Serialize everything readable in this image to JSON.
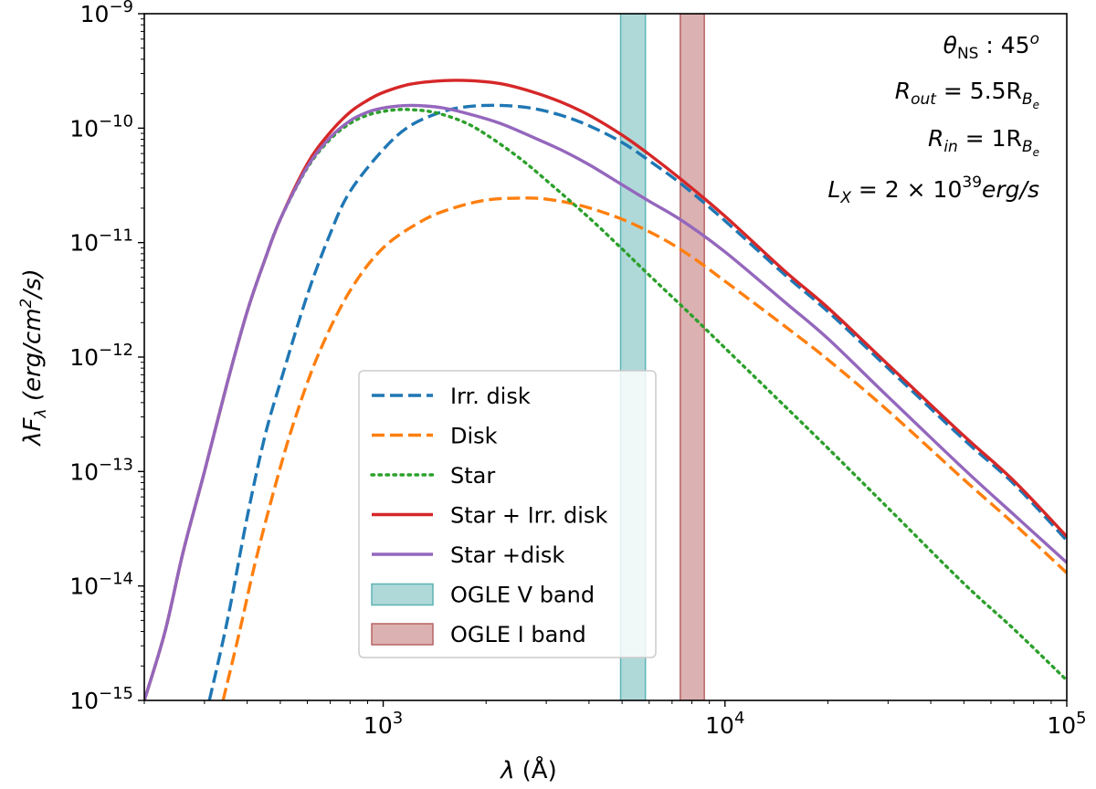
{
  "chart_data": {
    "type": "line",
    "xscale": "log",
    "yscale": "log",
    "xlim": [
      200,
      100000
    ],
    "ylim": [
      1e-15,
      1e-09
    ],
    "xlabel": {
      "main": "λ",
      "unit": "(Å)"
    },
    "ylabel": {
      "main": "λF",
      "sub": "λ",
      "unit_pre": " (erg/cm",
      "unit_sup": "2",
      "unit_post": "/s)"
    },
    "x_ticks": [
      {
        "value": 1000,
        "base": "10",
        "exp": "3"
      },
      {
        "value": 10000,
        "base": "10",
        "exp": "4"
      },
      {
        "value": 100000,
        "base": "10",
        "exp": "5"
      }
    ],
    "y_ticks": [
      {
        "value": 1e-09,
        "base": "10",
        "exp": "−9"
      },
      {
        "value": 1e-10,
        "base": "10",
        "exp": "−10"
      },
      {
        "value": 1e-11,
        "base": "10",
        "exp": "−11"
      },
      {
        "value": 1e-12,
        "base": "10",
        "exp": "−12"
      },
      {
        "value": 1e-13,
        "base": "10",
        "exp": "−13"
      },
      {
        "value": 1e-14,
        "base": "10",
        "exp": "−14"
      },
      {
        "value": 1e-15,
        "base": "10",
        "exp": "−15"
      }
    ],
    "annotations": {
      "theta": {
        "sym": "θ",
        "sub": "NS",
        "rest": " : 45",
        "sup": "o"
      },
      "rout": {
        "main": "R",
        "sub": "out",
        "rest": " = 5.5R",
        "sub2": "B",
        "sub3": "e"
      },
      "rin": {
        "main": "R",
        "sub": "in",
        "rest": " = 1R",
        "sub2": "B",
        "sub3": "e"
      },
      "lx": {
        "main": "L",
        "sub": "X",
        "rest": " = 2 × 10",
        "sup": "39",
        "tail": "erg/s"
      }
    },
    "bands": [
      {
        "name": "OGLE V band",
        "x0": 4950,
        "x1": 5850,
        "color": "#5fb3b3"
      },
      {
        "name": "OGLE I band",
        "x0": 7400,
        "x1": 8700,
        "color": "#b96464"
      }
    ],
    "series": [
      {
        "name": "Irr. disk",
        "color": "#1f77b4",
        "style": "dashed",
        "x": [
          310,
          350,
          400,
          450,
          500,
          600,
          700,
          800,
          1000,
          1200,
          1500,
          1800,
          2200,
          2700,
          3300,
          4000,
          5000,
          6000,
          7500,
          10000,
          15000,
          20000,
          30000,
          50000,
          70000,
          100000
        ],
        "y": [
          1e-15,
          5e-15,
          4e-14,
          2e-13,
          6e-13,
          3.5e-12,
          1.2e-11,
          2.8e-11,
          6.5e-11,
          1.05e-10,
          1.4e-10,
          1.55e-10,
          1.58e-10,
          1.5e-10,
          1.3e-10,
          1.05e-10,
          7.5e-11,
          5.2e-11,
          3.2e-11,
          1.55e-11,
          5.2e-12,
          2.5e-12,
          8e-13,
          1.9e-13,
          7.8e-14,
          2.5e-14
        ]
      },
      {
        "name": "Disk",
        "color": "#ff7f0e",
        "style": "dashed",
        "x": [
          340,
          380,
          420,
          480,
          550,
          650,
          800,
          1000,
          1300,
          1600,
          2000,
          2500,
          3000,
          3800,
          5000,
          6500,
          8000,
          10000,
          15000,
          20000,
          30000,
          50000,
          70000,
          100000
        ],
        "y": [
          1e-15,
          4e-15,
          1.5e-14,
          7e-14,
          2.8e-13,
          1.1e-12,
          3.8e-12,
          9e-12,
          1.55e-11,
          2e-11,
          2.35e-11,
          2.45e-11,
          2.4e-11,
          2.1e-11,
          1.6e-11,
          1.1e-11,
          7.5e-12,
          4.6e-12,
          1.85e-12,
          9.5e-13,
          3.4e-13,
          8.5e-14,
          3.5e-14,
          1.3e-14
        ]
      },
      {
        "name": "Star",
        "color": "#2ca02c",
        "style": "dotted",
        "x": [
          200,
          230,
          260,
          300,
          350,
          400,
          450,
          500,
          600,
          700,
          800,
          900,
          1000,
          1100,
          1200,
          1400,
          1700,
          2000,
          2500,
          3000,
          4000,
          5000,
          6000,
          8000,
          10000,
          15000,
          20000,
          30000,
          50000,
          70000,
          100000
        ],
        "y": [
          1e-15,
          4e-15,
          2e-14,
          1e-13,
          6e-13,
          2.5e-12,
          7e-12,
          1.6e-11,
          4.5e-11,
          8e-11,
          1.1e-10,
          1.3e-10,
          1.4e-10,
          1.45e-10,
          1.45e-10,
          1.38e-10,
          1.15e-10,
          8.8e-11,
          5.5e-11,
          3.5e-11,
          1.65e-11,
          8.8e-12,
          5.2e-12,
          2.3e-12,
          1.2e-12,
          3.7e-13,
          1.6e-13,
          4.8e-14,
          1.05e-14,
          4.2e-15,
          1.5e-15
        ]
      },
      {
        "name": "Star + Irr. disk",
        "color": "#d62728",
        "style": "solid",
        "x": [
          200,
          230,
          260,
          300,
          350,
          400,
          450,
          500,
          600,
          700,
          800,
          900,
          1000,
          1200,
          1500,
          1800,
          2200,
          2700,
          3300,
          4000,
          5000,
          6000,
          7500,
          10000,
          15000,
          20000,
          30000,
          50000,
          70000,
          100000
        ],
        "y": [
          1e-15,
          4e-15,
          2e-14,
          1e-13,
          6e-13,
          2.5e-12,
          7e-12,
          1.6e-11,
          4.9e-11,
          9.2e-11,
          1.38e-10,
          1.75e-10,
          2.05e-10,
          2.42e-10,
          2.6e-10,
          2.6e-10,
          2.45e-10,
          2.1e-10,
          1.7e-10,
          1.3e-10,
          8.7e-11,
          5.9e-11,
          3.5e-11,
          1.7e-11,
          5.6e-12,
          2.7e-12,
          8.6e-13,
          2.05e-13,
          8.3e-14,
          2.7e-14
        ]
      },
      {
        "name": "Star +disk",
        "color": "#9467bd",
        "style": "solid",
        "x": [
          200,
          230,
          260,
          300,
          350,
          400,
          450,
          500,
          600,
          700,
          800,
          900,
          1000,
          1100,
          1200,
          1300,
          1500,
          1800,
          2200,
          2700,
          3300,
          4000,
          5000,
          6000,
          7500,
          10000,
          15000,
          20000,
          30000,
          50000,
          70000,
          100000
        ],
        "y": [
          1e-15,
          4e-15,
          2e-14,
          1e-13,
          6e-13,
          2.5e-12,
          7e-12,
          1.6e-11,
          4.6e-11,
          8.3e-11,
          1.16e-10,
          1.38e-10,
          1.5e-10,
          1.56e-10,
          1.58e-10,
          1.57e-10,
          1.5e-10,
          1.32e-10,
          1.1e-10,
          8.5e-11,
          6.5e-11,
          4.8e-11,
          3.2e-11,
          2.3e-11,
          1.55e-11,
          8.3e-12,
          3e-12,
          1.45e-12,
          4.5e-13,
          1.05e-13,
          4.2e-14,
          1.6e-14
        ]
      }
    ],
    "legend": {
      "placement": "center",
      "entries": [
        "Irr. disk",
        "Disk",
        "Star",
        "Star + Irr. disk",
        "Star +disk",
        "OGLE V band",
        "OGLE I band"
      ]
    }
  }
}
